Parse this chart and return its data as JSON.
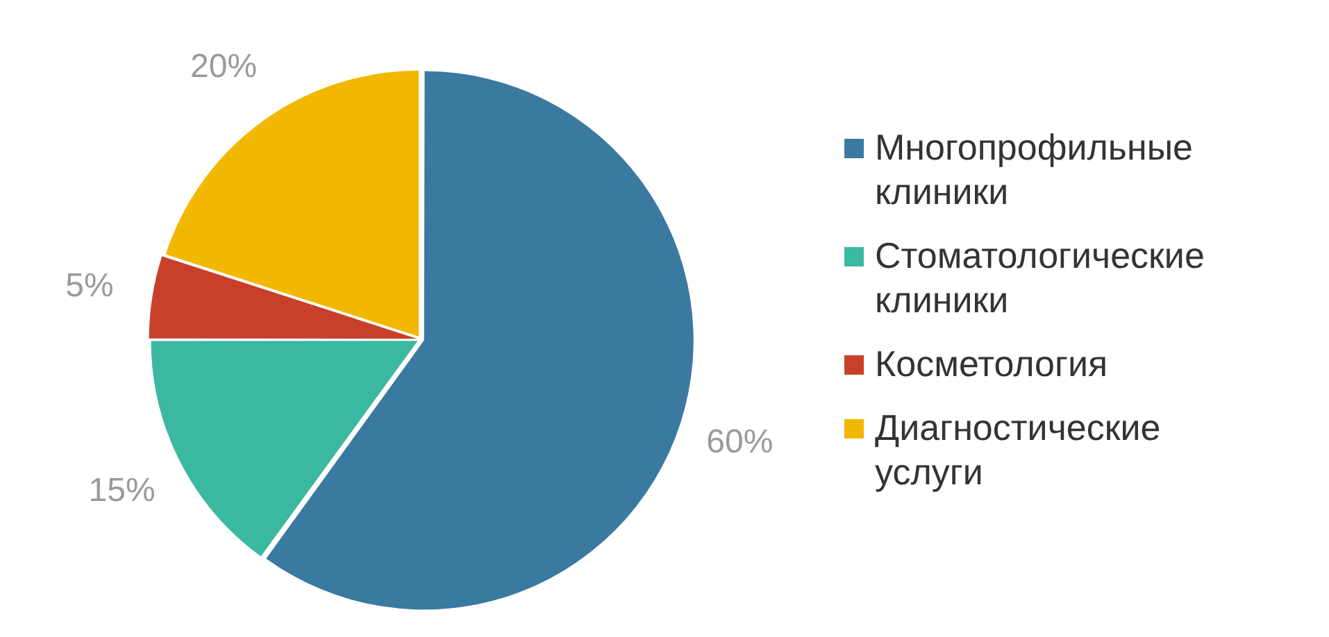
{
  "chart_data": {
    "type": "pie",
    "categories": [
      "Многопрофильные клиники",
      "Стоматологические клиники",
      "Косметология",
      "Диагностические услуги"
    ],
    "values": [
      60,
      15,
      5,
      20
    ],
    "colors": [
      "#3a79a0",
      "#3bb8a0",
      "#c8402a",
      "#f2b800"
    ],
    "value_labels": [
      "60%",
      "15%",
      "5%",
      "20%"
    ],
    "legend": "right"
  }
}
